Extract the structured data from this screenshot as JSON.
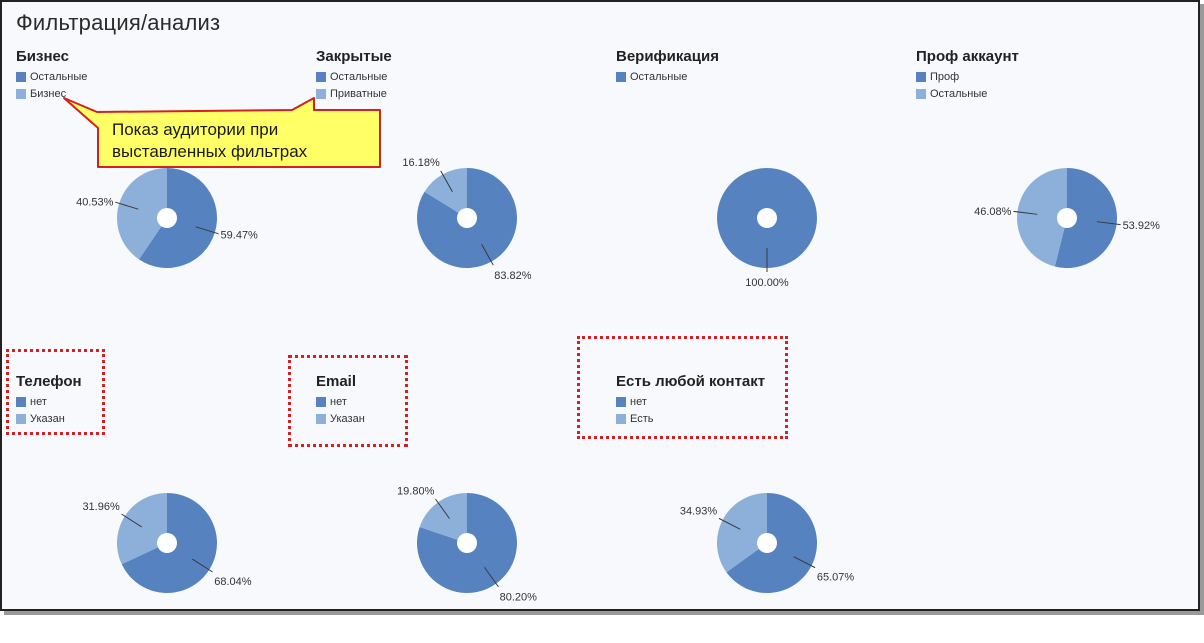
{
  "page": {
    "title": "Фильтрация/анализ"
  },
  "colors": {
    "dark": "#5683c0",
    "light": "#8db0db",
    "highlight": "#d42020",
    "callout_fill": "#ffff66"
  },
  "callout": {
    "text_line1": "Показ аудитории при",
    "text_line2": "выставленных фильтрах"
  },
  "chart_data": [
    {
      "type": "pie",
      "title": "Бизнес",
      "legend": [
        "Остальные",
        "Бизнес"
      ],
      "values": [
        59.47,
        40.53
      ],
      "labels": [
        "59.47%",
        "40.53%"
      ]
    },
    {
      "type": "pie",
      "title": "Закрытые",
      "legend": [
        "Остальные",
        "Приватные"
      ],
      "values": [
        83.82,
        16.18
      ],
      "labels": [
        "83.82%",
        "16.18%"
      ]
    },
    {
      "type": "pie",
      "title": "Верификация",
      "legend": [
        "Остальные"
      ],
      "values": [
        100.0
      ],
      "labels": [
        "100.00%"
      ]
    },
    {
      "type": "pie",
      "title": "Проф аккаунт",
      "legend": [
        "Проф",
        "Остальные"
      ],
      "values": [
        53.92,
        46.08
      ],
      "labels": [
        "53.92%",
        "46.08%"
      ]
    },
    {
      "type": "pie",
      "title": "Телефон",
      "legend": [
        "нет",
        "Указан"
      ],
      "values": [
        68.04,
        31.96
      ],
      "labels": [
        "68.04%",
        "31.96%"
      ]
    },
    {
      "type": "pie",
      "title": "Email",
      "legend": [
        "нет",
        "Указан"
      ],
      "values": [
        80.2,
        19.8
      ],
      "labels": [
        "80.20%",
        "19.80%"
      ]
    },
    {
      "type": "pie",
      "title": "Есть любой контакт",
      "legend": [
        "нет",
        "Есть"
      ],
      "values": [
        65.07,
        34.93
      ],
      "labels": [
        "65.07%",
        "34.93%"
      ]
    }
  ]
}
